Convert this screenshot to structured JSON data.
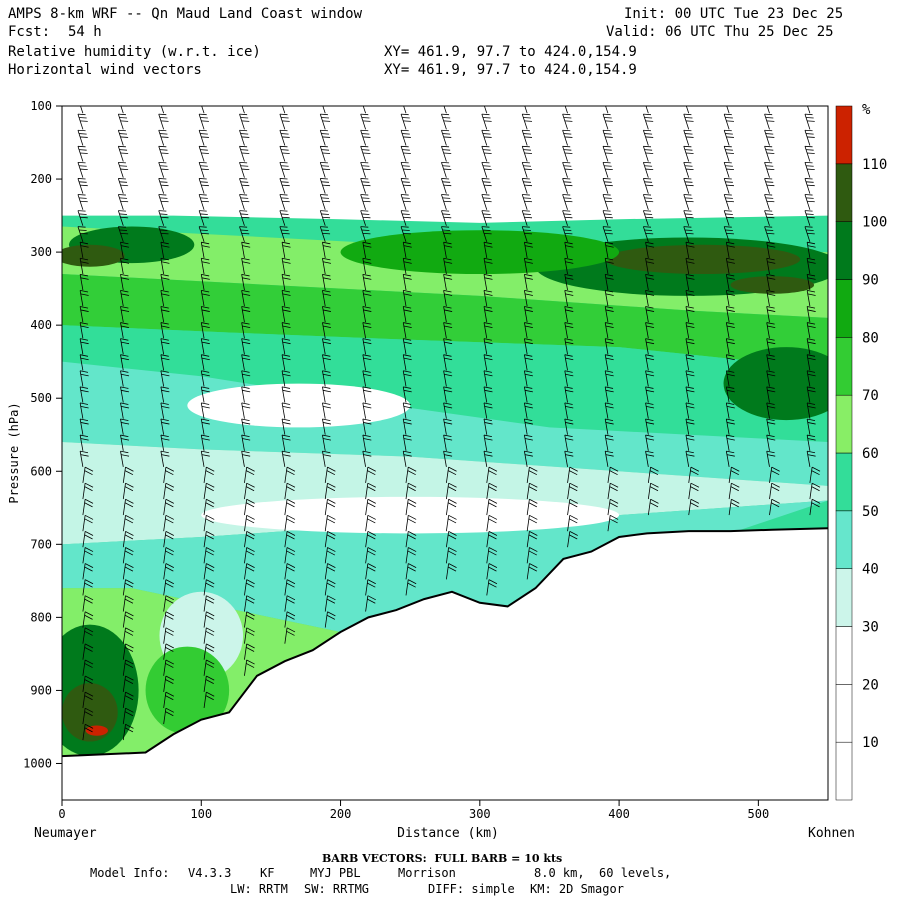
{
  "header": {
    "title": "AMPS 8-km WRF -- Qn Maud Land Coast window",
    "fcst_label": "Fcst:",
    "fcst_value": "54 h",
    "field1": "Relative humidity (w.r.t. ice)",
    "field2": "Horizontal wind vectors",
    "xy1": "XY= 461.9, 97.7 to 424.0,154.9",
    "xy2": "XY= 461.9, 97.7 to 424.0,154.9",
    "init": "Init: 00 UTC Tue 23 Dec 25",
    "valid": "Valid: 06 UTC Thu 25 Dec 25"
  },
  "chart_data": {
    "type": "heatmap",
    "xlabel": "Distance (km)",
    "ylabel": "Pressure (hPa)",
    "xlim": [
      0,
      550
    ],
    "ylim": [
      1050,
      100
    ],
    "x_ticks": [
      0,
      100,
      200,
      300,
      400,
      500
    ],
    "y_ticks": [
      100,
      200,
      300,
      400,
      500,
      600,
      700,
      800,
      900,
      1000
    ],
    "left_station": "Neumayer",
    "right_station": "Kohnen",
    "colorbar": {
      "unit": "%",
      "levels": [
        10,
        20,
        30,
        40,
        50,
        60,
        70,
        80,
        90,
        100,
        110
      ],
      "colors": [
        "#ffffff",
        "#ffffff",
        "#ffffff",
        "#ccf5ea",
        "#66e6cc",
        "#33dd99",
        "#88ee66",
        "#33cc33",
        "#11aa11",
        "#007a1c",
        "#2f5a10",
        "#cc2200"
      ]
    },
    "rh_bands": [
      {
        "x": [
          0,
          80,
          200,
          300,
          400,
          550
        ],
        "p": [
          250,
          250,
          255,
          260,
          255,
          250
        ],
        "rh": 10
      },
      {
        "x": [
          0,
          100,
          250,
          400,
          550
        ],
        "p": [
          265,
          275,
          290,
          300,
          300
        ],
        "rh": 60
      },
      {
        "x": [
          0,
          150,
          300,
          450,
          550
        ],
        "p": [
          330,
          345,
          360,
          380,
          390
        ],
        "rh": 70
      },
      {
        "x": [
          0,
          120,
          250,
          400,
          550
        ],
        "p": [
          400,
          410,
          420,
          430,
          460
        ],
        "rh": 50
      },
      {
        "x": [
          0,
          100,
          200,
          350,
          550
        ],
        "p": [
          450,
          470,
          500,
          540,
          560
        ],
        "rh": 40
      },
      {
        "x": [
          0,
          100,
          250,
          400,
          550
        ],
        "p": [
          560,
          570,
          580,
          600,
          620
        ],
        "rh": 30
      },
      {
        "x": [
          0,
          100,
          250,
          400,
          550
        ],
        "p": [
          700,
          690,
          670,
          660,
          640
        ],
        "rh": 40
      },
      {
        "x": [
          0,
          50,
          100,
          200,
          300
        ],
        "p": [
          760,
          760,
          780,
          820,
          800
        ],
        "rh": 60
      }
    ],
    "rh_blobs": [
      {
        "x": 50,
        "p": 290,
        "rx": 45,
        "rp": 25,
        "rh": 90
      },
      {
        "x": 20,
        "p": 305,
        "rx": 25,
        "rp": 15,
        "rh": 100
      },
      {
        "x": 450,
        "p": 320,
        "rx": 110,
        "rp": 40,
        "rh": 90
      },
      {
        "x": 460,
        "p": 310,
        "rx": 70,
        "rp": 20,
        "rh": 100
      },
      {
        "x": 510,
        "p": 345,
        "rx": 30,
        "rp": 12,
        "rh": 105
      },
      {
        "x": 300,
        "p": 300,
        "rx": 100,
        "rp": 30,
        "rh": 80
      },
      {
        "x": 520,
        "p": 480,
        "rx": 45,
        "rp": 50,
        "rh": 90
      },
      {
        "x": 170,
        "p": 510,
        "rx": 80,
        "rp": 30,
        "rh": 20
      },
      {
        "x": 250,
        "p": 660,
        "rx": 150,
        "rp": 25,
        "rh": 20
      },
      {
        "x": 100,
        "p": 825,
        "rx": 30,
        "rp": 60,
        "rh": 30
      },
      {
        "x": 20,
        "p": 900,
        "rx": 35,
        "rp": 90,
        "rh": 90
      },
      {
        "x": 20,
        "p": 930,
        "rx": 20,
        "rp": 40,
        "rh": 105
      },
      {
        "x": 25,
        "p": 955,
        "rx": 8,
        "rp": 7,
        "rh": 115
      },
      {
        "x": 90,
        "p": 900,
        "rx": 30,
        "rp": 60,
        "rh": 70
      }
    ],
    "terrain": {
      "x": [
        0,
        60,
        80,
        100,
        120,
        140,
        160,
        180,
        200,
        220,
        240,
        260,
        280,
        300,
        320,
        340,
        360,
        380,
        400,
        420,
        450,
        480,
        510,
        550
      ],
      "p": [
        990,
        985,
        960,
        940,
        930,
        880,
        860,
        845,
        820,
        800,
        790,
        775,
        765,
        780,
        785,
        760,
        720,
        710,
        690,
        685,
        682,
        682,
        680,
        678
      ]
    },
    "barbs": {
      "note": "wind barbs, full barb = 10 kts"
    }
  },
  "footer": {
    "barb_title": "BARB VECTORS:  FULL BARB = 10 kts",
    "model_info_label": "Model Info:",
    "model_version": "V4.3.3",
    "cu": "KF",
    "pbl": "MYJ PBL",
    "mp": "Morrison",
    "resolution": "8.0 km,  60 levels,",
    "lw": "LW: RRTM",
    "sw": "SW: RRTMG",
    "diff": "DIFF: simple",
    "km": "KM: 2D Smagor"
  }
}
